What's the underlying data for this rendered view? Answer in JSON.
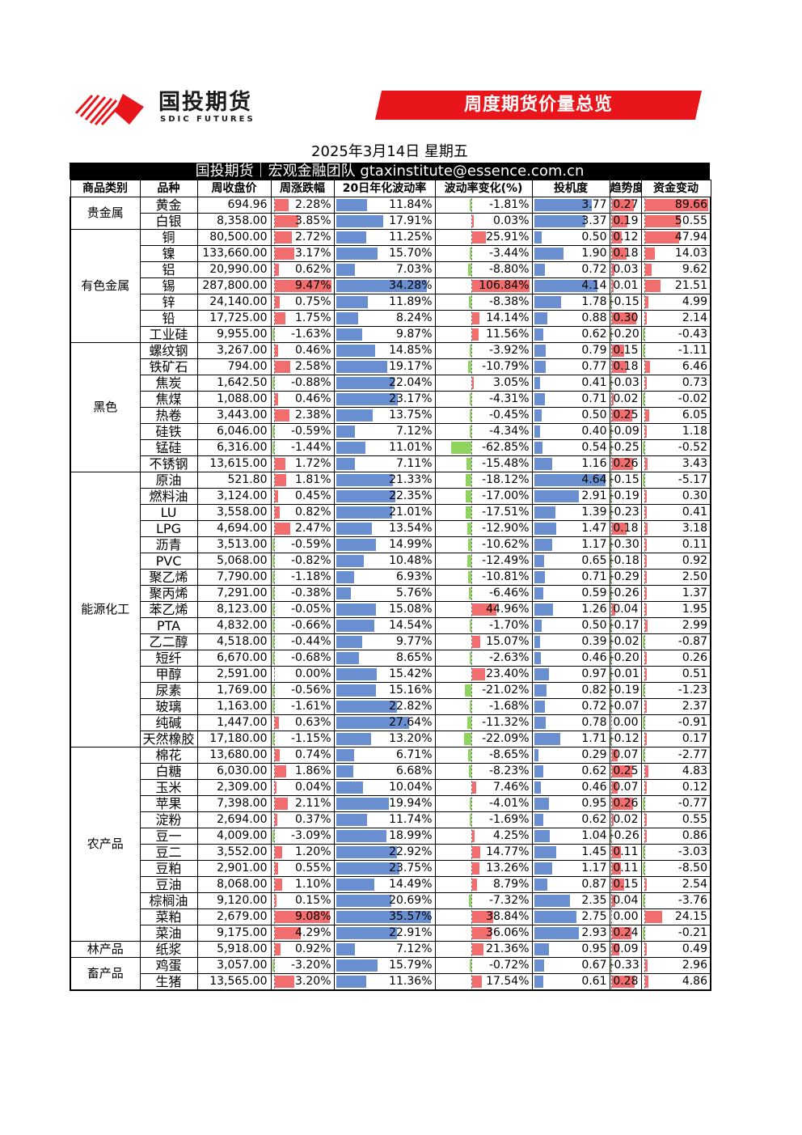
{
  "brand": {
    "name_cn": "国投期货",
    "name_en": "SDIC FUTURES"
  },
  "banner": "周度期货价量总览",
  "date": "2025年3月14日 星期五",
  "team": "国投期货｜宏观金融团队 gtaxinstitute@essence.com.cn",
  "colors": {
    "brand_red": "#e8151b",
    "up": "#f26d6d",
    "down": "#8fd45f",
    "bar_blue": "#6a8fd0"
  },
  "columns": [
    "商品类别",
    "品种",
    "周收盘价",
    "周涨跌幅",
    "20日年化波动率",
    "波动率变化(%)",
    "投机度",
    "趋势度",
    "资金变动"
  ],
  "groups": [
    {
      "name": "贵金属",
      "rows": [
        {
          "n": "黄金",
          "p": "694.96",
          "c": "2.28%",
          "v": "11.84%",
          "vc": "-1.81%",
          "s": "3.77",
          "t": "0.27",
          "f": "89.66"
        },
        {
          "n": "白银",
          "p": "8,358.00",
          "c": "3.85%",
          "v": "17.91%",
          "vc": "0.03%",
          "s": "3.37",
          "t": "0.19",
          "f": "50.55"
        }
      ]
    },
    {
      "name": "有色金属",
      "rows": [
        {
          "n": "铜",
          "p": "80,500.00",
          "c": "2.72%",
          "v": "11.25%",
          "vc": "25.91%",
          "s": "0.50",
          "t": "0.12",
          "f": "47.94"
        },
        {
          "n": "镍",
          "p": "133,660.00",
          "c": "3.17%",
          "v": "15.70%",
          "vc": "-3.44%",
          "s": "1.90",
          "t": "0.18",
          "f": "14.03"
        },
        {
          "n": "铝",
          "p": "20,990.00",
          "c": "0.62%",
          "v": "7.03%",
          "vc": "-8.80%",
          "s": "0.72",
          "t": "0.03",
          "f": "9.62"
        },
        {
          "n": "锡",
          "p": "287,800.00",
          "c": "9.47%",
          "v": "34.28%",
          "vc": "106.84%",
          "s": "4.14",
          "t": "0.01",
          "f": "21.51"
        },
        {
          "n": "锌",
          "p": "24,140.00",
          "c": "0.75%",
          "v": "11.89%",
          "vc": "-8.38%",
          "s": "1.78",
          "t": "-0.15",
          "f": "4.99"
        },
        {
          "n": "铅",
          "p": "17,725.00",
          "c": "1.75%",
          "v": "8.24%",
          "vc": "14.14%",
          "s": "0.88",
          "t": "0.30",
          "f": "2.14"
        },
        {
          "n": "工业硅",
          "p": "9,955.00",
          "c": "-1.63%",
          "v": "9.87%",
          "vc": "11.56%",
          "s": "0.62",
          "t": "-0.20",
          "f": "-0.43"
        }
      ]
    },
    {
      "name": "黑色",
      "rows": [
        {
          "n": "螺纹钢",
          "p": "3,267.00",
          "c": "0.46%",
          "v": "14.85%",
          "vc": "-3.92%",
          "s": "0.79",
          "t": "0.15",
          "f": "-1.11"
        },
        {
          "n": "铁矿石",
          "p": "794.00",
          "c": "2.58%",
          "v": "19.17%",
          "vc": "-10.79%",
          "s": "0.77",
          "t": "0.18",
          "f": "6.46"
        },
        {
          "n": "焦炭",
          "p": "1,642.50",
          "c": "-0.88%",
          "v": "22.04%",
          "vc": "3.05%",
          "s": "0.41",
          "t": "-0.03",
          "f": "0.73"
        },
        {
          "n": "焦煤",
          "p": "1,088.00",
          "c": "0.46%",
          "v": "23.17%",
          "vc": "-4.31%",
          "s": "0.71",
          "t": "0.02",
          "f": "-0.02"
        },
        {
          "n": "热卷",
          "p": "3,443.00",
          "c": "2.38%",
          "v": "13.75%",
          "vc": "-0.45%",
          "s": "0.50",
          "t": "0.25",
          "f": "6.05"
        },
        {
          "n": "硅铁",
          "p": "6,046.00",
          "c": "-0.59%",
          "v": "7.12%",
          "vc": "-4.34%",
          "s": "0.40",
          "t": "-0.09",
          "f": "1.18"
        },
        {
          "n": "锰硅",
          "p": "6,316.00",
          "c": "-1.44%",
          "v": "11.01%",
          "vc": "-62.85%",
          "s": "0.54",
          "t": "-0.25",
          "f": "-0.52"
        },
        {
          "n": "不锈钢",
          "p": "13,615.00",
          "c": "1.72%",
          "v": "7.11%",
          "vc": "-15.48%",
          "s": "1.16",
          "t": "0.26",
          "f": "3.43"
        }
      ]
    },
    {
      "name": "能源化工",
      "rows": [
        {
          "n": "原油",
          "p": "521.80",
          "c": "1.81%",
          "v": "21.33%",
          "vc": "-18.12%",
          "s": "4.64",
          "t": "-0.15",
          "f": "-5.17"
        },
        {
          "n": "燃料油",
          "p": "3,124.00",
          "c": "0.45%",
          "v": "22.35%",
          "vc": "-17.00%",
          "s": "2.91",
          "t": "-0.19",
          "f": "0.30"
        },
        {
          "n": "LU",
          "p": "3,558.00",
          "c": "0.82%",
          "v": "21.01%",
          "vc": "-17.51%",
          "s": "1.39",
          "t": "-0.23",
          "f": "0.41"
        },
        {
          "n": "LPG",
          "p": "4,694.00",
          "c": "2.47%",
          "v": "13.54%",
          "vc": "-12.90%",
          "s": "1.47",
          "t": "0.18",
          "f": "3.18"
        },
        {
          "n": "沥青",
          "p": "3,513.00",
          "c": "-0.59%",
          "v": "14.99%",
          "vc": "-10.62%",
          "s": "1.17",
          "t": "-0.30",
          "f": "0.11"
        },
        {
          "n": "PVC",
          "p": "5,068.00",
          "c": "-0.82%",
          "v": "10.48%",
          "vc": "-12.49%",
          "s": "0.65",
          "t": "-0.18",
          "f": "0.92"
        },
        {
          "n": "聚乙烯",
          "p": "7,790.00",
          "c": "-1.18%",
          "v": "6.93%",
          "vc": "-10.81%",
          "s": "0.71",
          "t": "-0.29",
          "f": "2.50"
        },
        {
          "n": "聚丙烯",
          "p": "7,291.00",
          "c": "-0.38%",
          "v": "5.76%",
          "vc": "-6.46%",
          "s": "0.59",
          "t": "-0.26",
          "f": "1.37"
        },
        {
          "n": "苯乙烯",
          "p": "8,123.00",
          "c": "-0.05%",
          "v": "15.08%",
          "vc": "44.96%",
          "s": "1.26",
          "t": "0.04",
          "f": "1.95"
        },
        {
          "n": "PTA",
          "p": "4,832.00",
          "c": "-0.66%",
          "v": "14.54%",
          "vc": "-1.70%",
          "s": "0.50",
          "t": "-0.17",
          "f": "2.99"
        },
        {
          "n": "乙二醇",
          "p": "4,518.00",
          "c": "-0.44%",
          "v": "9.77%",
          "vc": "15.07%",
          "s": "0.39",
          "t": "-0.02",
          "f": "-0.87"
        },
        {
          "n": "短纤",
          "p": "6,670.00",
          "c": "-0.68%",
          "v": "8.65%",
          "vc": "-2.63%",
          "s": "0.46",
          "t": "-0.20",
          "f": "0.26"
        },
        {
          "n": "甲醇",
          "p": "2,591.00",
          "c": "0.00%",
          "v": "15.42%",
          "vc": "23.40%",
          "s": "0.97",
          "t": "-0.01",
          "f": "0.51"
        },
        {
          "n": "尿素",
          "p": "1,769.00",
          "c": "-0.56%",
          "v": "15.16%",
          "vc": "-21.02%",
          "s": "0.82",
          "t": "-0.19",
          "f": "-1.23"
        },
        {
          "n": "玻璃",
          "p": "1,163.00",
          "c": "-1.61%",
          "v": "22.82%",
          "vc": "-1.68%",
          "s": "0.72",
          "t": "-0.07",
          "f": "2.37"
        },
        {
          "n": "纯碱",
          "p": "1,447.00",
          "c": "0.63%",
          "v": "27.64%",
          "vc": "-11.32%",
          "s": "0.78",
          "t": "0.00",
          "f": "-0.91"
        },
        {
          "n": "天然橡胶",
          "p": "17,180.00",
          "c": "-1.15%",
          "v": "13.20%",
          "vc": "-22.09%",
          "s": "1.71",
          "t": "-0.12",
          "f": "0.17"
        }
      ]
    },
    {
      "name": "农产品",
      "rows": [
        {
          "n": "棉花",
          "p": "13,680.00",
          "c": "0.74%",
          "v": "6.71%",
          "vc": "-8.65%",
          "s": "0.29",
          "t": "0.07",
          "f": "-2.77"
        },
        {
          "n": "白糖",
          "p": "6,030.00",
          "c": "1.86%",
          "v": "6.68%",
          "vc": "-8.23%",
          "s": "0.62",
          "t": "0.25",
          "f": "4.83"
        },
        {
          "n": "玉米",
          "p": "2,309.00",
          "c": "0.04%",
          "v": "10.04%",
          "vc": "7.46%",
          "s": "0.46",
          "t": "0.07",
          "f": "0.12"
        },
        {
          "n": "苹果",
          "p": "7,398.00",
          "c": "2.11%",
          "v": "19.94%",
          "vc": "-4.01%",
          "s": "0.95",
          "t": "0.26",
          "f": "-0.77"
        },
        {
          "n": "淀粉",
          "p": "2,694.00",
          "c": "0.37%",
          "v": "11.74%",
          "vc": "-1.69%",
          "s": "0.62",
          "t": "0.02",
          "f": "0.55"
        },
        {
          "n": "豆一",
          "p": "4,009.00",
          "c": "-3.09%",
          "v": "18.99%",
          "vc": "4.25%",
          "s": "1.04",
          "t": "-0.26",
          "f": "0.86"
        },
        {
          "n": "豆二",
          "p": "3,552.00",
          "c": "1.20%",
          "v": "22.92%",
          "vc": "14.77%",
          "s": "1.45",
          "t": "0.11",
          "f": "-3.03"
        },
        {
          "n": "豆粕",
          "p": "2,901.00",
          "c": "0.55%",
          "v": "23.75%",
          "vc": "13.26%",
          "s": "1.17",
          "t": "0.11",
          "f": "-8.50"
        },
        {
          "n": "豆油",
          "p": "8,068.00",
          "c": "1.10%",
          "v": "14.49%",
          "vc": "8.79%",
          "s": "0.87",
          "t": "0.15",
          "f": "2.54"
        },
        {
          "n": "棕榈油",
          "p": "9,120.00",
          "c": "0.15%",
          "v": "20.69%",
          "vc": "-7.32%",
          "s": "2.35",
          "t": "0.04",
          "f": "-3.76"
        },
        {
          "n": "菜粕",
          "p": "2,679.00",
          "c": "9.08%",
          "v": "35.57%",
          "vc": "38.84%",
          "s": "2.75",
          "t": "0.00",
          "f": "24.15"
        },
        {
          "n": "菜油",
          "p": "9,175.00",
          "c": "4.29%",
          "v": "22.91%",
          "vc": "36.06%",
          "s": "2.93",
          "t": "0.24",
          "f": "-0.21"
        }
      ]
    },
    {
      "name": "林产品",
      "rows": [
        {
          "n": "纸浆",
          "p": "5,918.00",
          "c": "0.92%",
          "v": "7.12%",
          "vc": "21.36%",
          "s": "0.95",
          "t": "0.09",
          "f": "0.49"
        }
      ]
    },
    {
      "name": "畜产品",
      "rows": [
        {
          "n": "鸡蛋",
          "p": "3,057.00",
          "c": "-3.20%",
          "v": "15.79%",
          "vc": "-0.72%",
          "s": "0.67",
          "t": "-0.33",
          "f": "2.96"
        },
        {
          "n": "生猪",
          "p": "13,565.00",
          "c": "3.20%",
          "v": "11.36%",
          "vc": "17.54%",
          "s": "0.61",
          "t": "0.28",
          "f": "4.86"
        }
      ]
    }
  ]
}
